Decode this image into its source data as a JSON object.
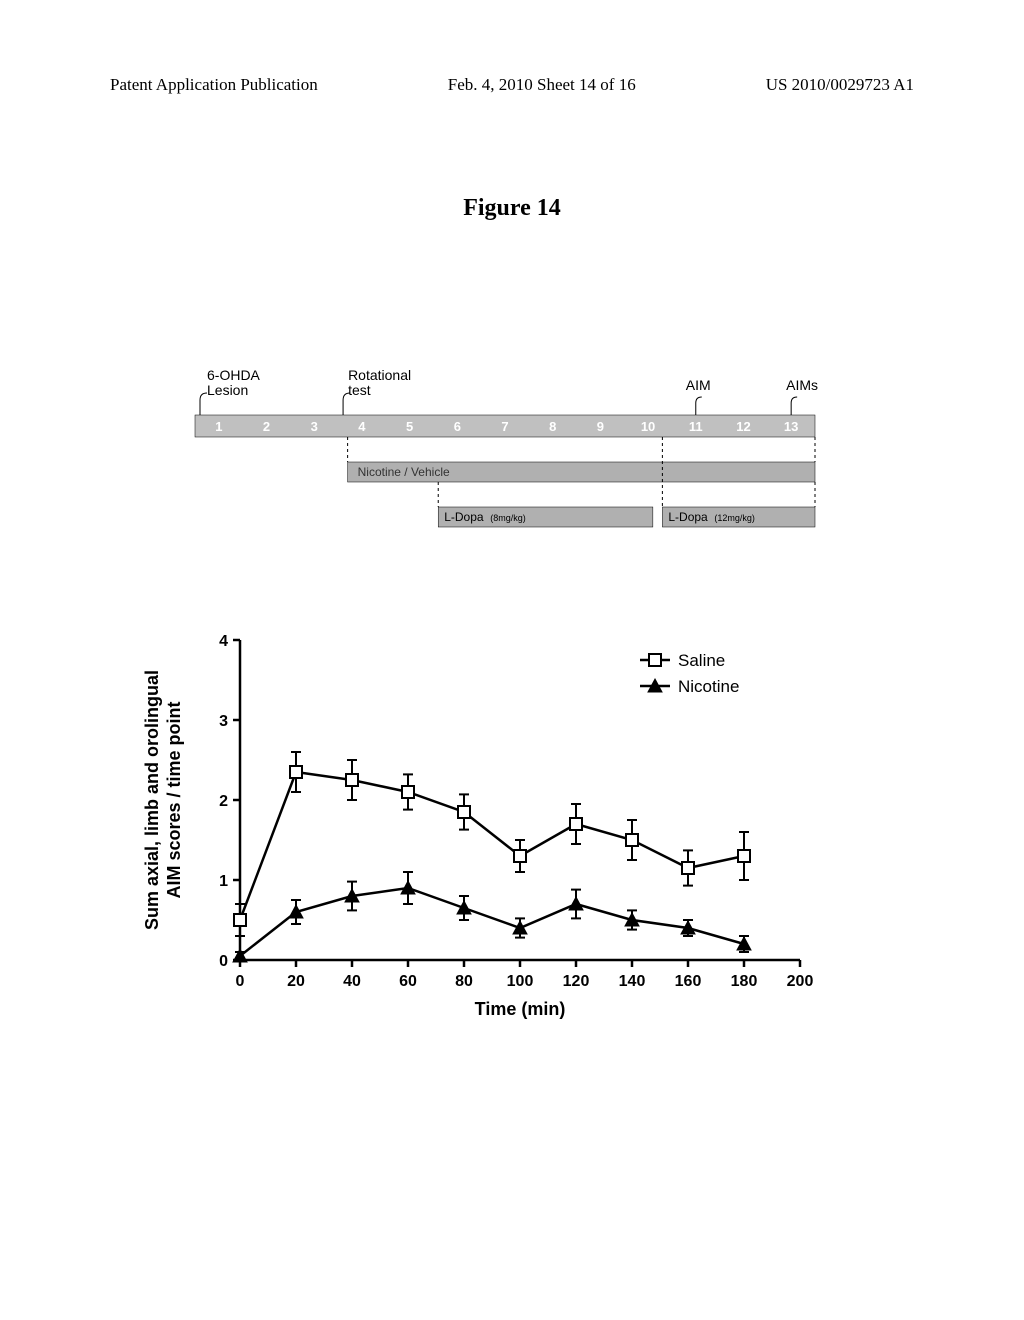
{
  "header": {
    "left": "Patent Application Publication",
    "center": "Feb. 4, 2010  Sheet 14 of 16",
    "right": "US 2010/0029723 A1"
  },
  "figure_title": "Figure 14",
  "timeline": {
    "weeks": [
      "1",
      "2",
      "3",
      "4",
      "5",
      "6",
      "7",
      "8",
      "9",
      "10",
      "11",
      "12",
      "13"
    ],
    "week_bg": "#c0c0c0",
    "week_text_color": "#ffffff",
    "labels": {
      "lesion": "6-OHDA",
      "lesion2": "Lesion",
      "rotational": "Rotational",
      "rotational2": "test",
      "aim": "AIM",
      "aims": "AIMs"
    },
    "nicotine_label": "Nicotine / Vehicle",
    "ldopa1": "L-Dopa",
    "ldopa1_dose": "(8mg/kg)",
    "ldopa2": "L-Dopa",
    "ldopa2_dose": "(12mg/kg)",
    "bar_bg": "#b0b0b0"
  },
  "chart": {
    "title": "",
    "ylabel_line1": "Sum axial, limb and orolingual",
    "ylabel_line2": "AIM scores / time point",
    "xlabel": "Time (min)",
    "xlim": [
      0,
      200
    ],
    "ylim": [
      0,
      4
    ],
    "xticks": [
      0,
      20,
      40,
      60,
      80,
      100,
      120,
      140,
      160,
      180,
      200
    ],
    "yticks": [
      0,
      1,
      2,
      3,
      4
    ],
    "tick_fontsize": 16,
    "label_fontsize": 18,
    "legend": {
      "saline": "Saline",
      "nicotine": "Nicotine"
    },
    "series": {
      "saline": {
        "marker": "square-open",
        "color": "#000000",
        "line_width": 2.5,
        "x": [
          0,
          20,
          40,
          60,
          80,
          100,
          120,
          140,
          160,
          180
        ],
        "y": [
          0.5,
          2.35,
          2.25,
          2.1,
          1.85,
          1.3,
          1.7,
          1.5,
          1.15,
          1.3
        ],
        "err": [
          0.2,
          0.25,
          0.25,
          0.22,
          0.22,
          0.2,
          0.25,
          0.25,
          0.22,
          0.3
        ]
      },
      "nicotine": {
        "marker": "triangle-filled",
        "color": "#000000",
        "line_width": 2.5,
        "x": [
          0,
          20,
          40,
          60,
          80,
          100,
          120,
          140,
          160,
          180
        ],
        "y": [
          0.05,
          0.6,
          0.8,
          0.9,
          0.65,
          0.4,
          0.7,
          0.5,
          0.4,
          0.2
        ],
        "err": [
          0.05,
          0.15,
          0.18,
          0.2,
          0.15,
          0.12,
          0.18,
          0.12,
          0.1,
          0.1
        ]
      }
    },
    "background_color": "#ffffff",
    "axis_color": "#000000"
  }
}
